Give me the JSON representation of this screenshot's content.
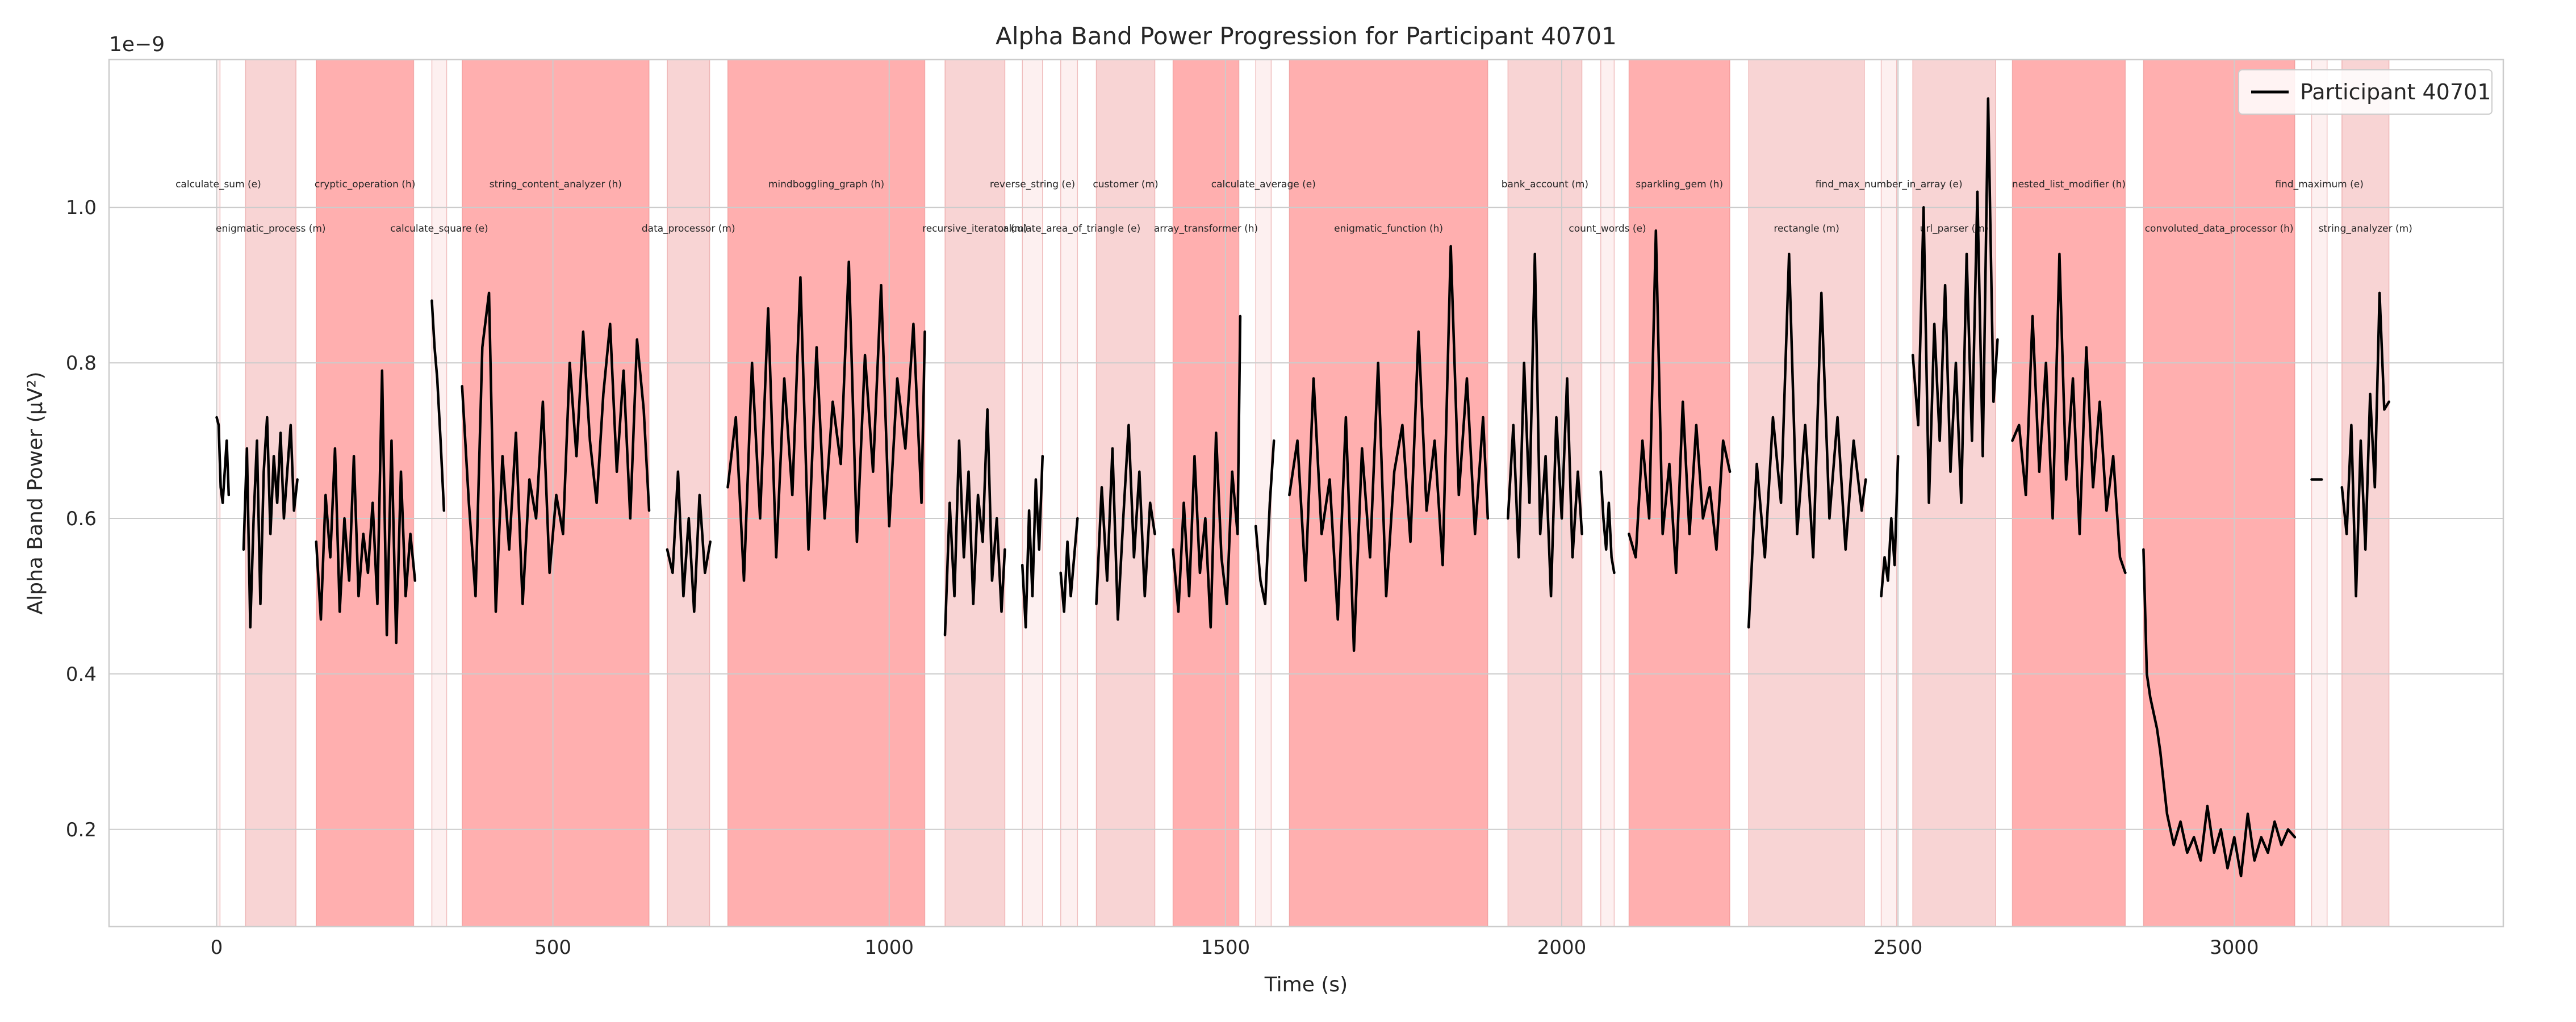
{
  "chart_data": {
    "type": "line",
    "title": "Alpha Band Power Progression for Participant 40701",
    "xlabel": "Time (s)",
    "ylabel": "Alpha Band Power (µV²)",
    "y_offset_label": "1e−9",
    "xlim": [
      -160,
      3400
    ],
    "ylim": [
      0.075,
      1.19
    ],
    "x_ticks": [
      0,
      500,
      1000,
      1500,
      2000,
      2500,
      3000
    ],
    "x_tick_labels": [
      "0",
      "500",
      "1000",
      "1500",
      "2000",
      "2500",
      "3000"
    ],
    "y_ticks": [
      0.2,
      0.4,
      0.6,
      0.8,
      1.0
    ],
    "y_tick_labels": [
      "0.2",
      "0.4",
      "0.6",
      "0.8",
      "1.0"
    ],
    "grid": true,
    "legend": {
      "placement": "top-right",
      "entries": [
        "Participant 40701"
      ]
    },
    "colors": {
      "line": "#000000",
      "hard": "#ff9999",
      "medium": "#f4b8b8",
      "easy": "#fbe3e3",
      "grid": "#cccccc"
    },
    "tasks": [
      {
        "label": "calculate_sum (e)",
        "start": 0,
        "end": 5,
        "difficulty": "e",
        "row": 0
      },
      {
        "label": "enigmatic_process (m)",
        "start": 43,
        "end": 118,
        "difficulty": "m",
        "row": 1
      },
      {
        "label": "cryptic_operation (h)",
        "start": 148,
        "end": 293,
        "difficulty": "h",
        "row": 0
      },
      {
        "label": "calculate_square (e)",
        "start": 320,
        "end": 342,
        "difficulty": "e",
        "row": 1
      },
      {
        "label": "string_content_analyzer (h)",
        "start": 365,
        "end": 643,
        "difficulty": "h",
        "row": 0
      },
      {
        "label": "data_processor (m)",
        "start": 670,
        "end": 733,
        "difficulty": "m",
        "row": 1
      },
      {
        "label": "mindboggling_graph (h)",
        "start": 760,
        "end": 1053,
        "difficulty": "h",
        "row": 0
      },
      {
        "label": "recursive_iterator (m)",
        "start": 1083,
        "end": 1172,
        "difficulty": "m",
        "row": 1
      },
      {
        "label": "reverse_string (e)",
        "start": 1198,
        "end": 1228,
        "difficulty": "e",
        "row": 0
      },
      {
        "label": "calculate_area_of_triangle (e)",
        "start": 1255,
        "end": 1280,
        "difficulty": "e",
        "row": 1
      },
      {
        "label": "customer (m)",
        "start": 1308,
        "end": 1395,
        "difficulty": "m",
        "row": 0
      },
      {
        "label": "array_transformer (h)",
        "start": 1422,
        "end": 1520,
        "difficulty": "h",
        "row": 1
      },
      {
        "label": "calculate_average (e)",
        "start": 1545,
        "end": 1568,
        "difficulty": "e",
        "row": 0
      },
      {
        "label": "enigmatic_function (h)",
        "start": 1595,
        "end": 1890,
        "difficulty": "h",
        "row": 1
      },
      {
        "label": "bank_account (m)",
        "start": 1920,
        "end": 2030,
        "difficulty": "m",
        "row": 0
      },
      {
        "label": "count_words (e)",
        "start": 2058,
        "end": 2078,
        "difficulty": "e",
        "row": 1
      },
      {
        "label": "sparkling_gem (h)",
        "start": 2100,
        "end": 2250,
        "difficulty": "h",
        "row": 0
      },
      {
        "label": "rectangle (m)",
        "start": 2278,
        "end": 2450,
        "difficulty": "m",
        "row": 1
      },
      {
        "label": "find_max_number_in_array (e)",
        "start": 2475,
        "end": 2498,
        "difficulty": "e",
        "row": 0
      },
      {
        "label": "url_parser (m)",
        "start": 2522,
        "end": 2645,
        "difficulty": "m",
        "row": 1
      },
      {
        "label": "nested_list_modifier (h)",
        "start": 2670,
        "end": 2838,
        "difficulty": "h",
        "row": 0
      },
      {
        "label": "convoluted_data_processor (h)",
        "start": 2865,
        "end": 3090,
        "difficulty": "h",
        "row": 1
      },
      {
        "label": "find_maximum (e)",
        "start": 3115,
        "end": 3138,
        "difficulty": "e",
        "row": 0
      },
      {
        "label": "string_analyzer (m)",
        "start": 3160,
        "end": 3230,
        "difficulty": "m",
        "row": 1
      }
    ],
    "series": [
      {
        "name": "Participant 40701",
        "segments": [
          {
            "x": [
              0,
              3,
              6,
              9,
              12,
              15,
              18
            ],
            "y": [
              0.73,
              0.72,
              0.64,
              0.62,
              0.66,
              0.7,
              0.63
            ]
          },
          {
            "x": [
              40,
              45,
              50,
              55,
              60,
              65,
              70,
              75,
              80,
              85,
              90,
              95,
              100,
              105,
              110,
              115,
              120
            ],
            "y": [
              0.56,
              0.69,
              0.46,
              0.6,
              0.7,
              0.49,
              0.66,
              0.73,
              0.58,
              0.68,
              0.62,
              0.71,
              0.6,
              0.66,
              0.72,
              0.61,
              0.65
            ]
          },
          {
            "x": [
              148,
              155,
              162,
              169,
              176,
              183,
              190,
              197,
              204,
              211,
              218,
              225,
              232,
              239,
              246,
              253,
              260,
              267,
              274,
              281,
              288,
              295
            ],
            "y": [
              0.57,
              0.47,
              0.63,
              0.55,
              0.69,
              0.48,
              0.6,
              0.52,
              0.68,
              0.5,
              0.58,
              0.53,
              0.62,
              0.49,
              0.79,
              0.45,
              0.7,
              0.44,
              0.66,
              0.5,
              0.58,
              0.52
            ]
          },
          {
            "x": [
              320,
              324,
              328,
              333,
              338
            ],
            "y": [
              0.88,
              0.82,
              0.78,
              0.7,
              0.61
            ]
          },
          {
            "x": [
              365,
              375,
              385,
              395,
              405,
              415,
              425,
              435,
              445,
              455,
              465,
              475,
              485,
              495,
              505,
              515,
              525,
              535,
              545,
              555,
              565,
              575,
              585,
              595,
              605,
              615,
              625,
              635,
              643
            ],
            "y": [
              0.77,
              0.62,
              0.5,
              0.82,
              0.89,
              0.48,
              0.68,
              0.56,
              0.71,
              0.49,
              0.65,
              0.6,
              0.75,
              0.53,
              0.63,
              0.58,
              0.8,
              0.68,
              0.84,
              0.7,
              0.62,
              0.76,
              0.85,
              0.66,
              0.79,
              0.6,
              0.83,
              0.74,
              0.61
            ]
          },
          {
            "x": [
              670,
              678,
              686,
              694,
              702,
              710,
              718,
              726,
              734
            ],
            "y": [
              0.56,
              0.53,
              0.66,
              0.5,
              0.6,
              0.48,
              0.63,
              0.53,
              0.57
            ]
          },
          {
            "x": [
              760,
              772,
              784,
              796,
              808,
              820,
              832,
              844,
              856,
              868,
              880,
              892,
              904,
              916,
              928,
              940,
              952,
              964,
              976,
              988,
              1000,
              1012,
              1024,
              1036,
              1048,
              1053
            ],
            "y": [
              0.64,
              0.73,
              0.52,
              0.8,
              0.6,
              0.87,
              0.55,
              0.78,
              0.63,
              0.91,
              0.56,
              0.82,
              0.6,
              0.75,
              0.67,
              0.93,
              0.57,
              0.81,
              0.66,
              0.9,
              0.59,
              0.78,
              0.69,
              0.85,
              0.62,
              0.84
            ]
          },
          {
            "x": [
              1083,
              1090,
              1097,
              1104,
              1111,
              1118,
              1125,
              1132,
              1139,
              1146,
              1153,
              1160,
              1167,
              1172
            ],
            "y": [
              0.45,
              0.62,
              0.5,
              0.7,
              0.55,
              0.66,
              0.49,
              0.63,
              0.57,
              0.74,
              0.52,
              0.6,
              0.48,
              0.56
            ]
          },
          {
            "x": [
              1198,
              1203,
              1208,
              1213,
              1218,
              1223,
              1228
            ],
            "y": [
              0.54,
              0.46,
              0.61,
              0.5,
              0.65,
              0.56,
              0.68
            ]
          },
          {
            "x": [
              1255,
              1260,
              1265,
              1270,
              1275,
              1280
            ],
            "y": [
              0.53,
              0.48,
              0.57,
              0.5,
              0.55,
              0.6
            ]
          },
          {
            "x": [
              1308,
              1316,
              1324,
              1332,
              1340,
              1348,
              1356,
              1364,
              1372,
              1380,
              1388,
              1395
            ],
            "y": [
              0.49,
              0.64,
              0.52,
              0.69,
              0.47,
              0.6,
              0.72,
              0.55,
              0.66,
              0.5,
              0.62,
              0.58
            ]
          },
          {
            "x": [
              1422,
              1430,
              1438,
              1446,
              1454,
              1462,
              1470,
              1478,
              1486,
              1494,
              1502,
              1510,
              1518,
              1522
            ],
            "y": [
              0.56,
              0.48,
              0.62,
              0.5,
              0.68,
              0.53,
              0.6,
              0.46,
              0.71,
              0.55,
              0.49,
              0.66,
              0.58,
              0.86
            ]
          },
          {
            "x": [
              1545,
              1552,
              1559,
              1566,
              1572
            ],
            "y": [
              0.59,
              0.52,
              0.49,
              0.62,
              0.7
            ]
          },
          {
            "x": [
              1595,
              1607,
              1619,
              1631,
              1643,
              1655,
              1667,
              1679,
              1691,
              1703,
              1715,
              1727,
              1739,
              1751,
              1763,
              1775,
              1787,
              1799,
              1811,
              1823,
              1835,
              1847,
              1859,
              1871,
              1883,
              1890
            ],
            "y": [
              0.63,
              0.7,
              0.52,
              0.78,
              0.58,
              0.65,
              0.47,
              0.73,
              0.43,
              0.69,
              0.55,
              0.8,
              0.5,
              0.66,
              0.72,
              0.57,
              0.84,
              0.61,
              0.7,
              0.54,
              0.95,
              0.63,
              0.78,
              0.58,
              0.73,
              0.6
            ]
          },
          {
            "x": [
              1920,
              1928,
              1936,
              1944,
              1952,
              1960,
              1968,
              1976,
              1984,
              1992,
              2000,
              2008,
              2016,
              2024,
              2030
            ],
            "y": [
              0.6,
              0.72,
              0.55,
              0.8,
              0.62,
              0.94,
              0.58,
              0.68,
              0.5,
              0.73,
              0.6,
              0.78,
              0.55,
              0.66,
              0.58
            ]
          },
          {
            "x": [
              2058,
              2062,
              2066,
              2070,
              2074,
              2078
            ],
            "y": [
              0.66,
              0.6,
              0.56,
              0.62,
              0.55,
              0.53
            ]
          },
          {
            "x": [
              2100,
              2110,
              2120,
              2130,
              2140,
              2150,
              2160,
              2170,
              2180,
              2190,
              2200,
              2210,
              2220,
              2230,
              2240,
              2250
            ],
            "y": [
              0.58,
              0.55,
              0.7,
              0.6,
              0.97,
              0.58,
              0.67,
              0.53,
              0.75,
              0.58,
              0.72,
              0.6,
              0.64,
              0.56,
              0.7,
              0.66
            ]
          },
          {
            "x": [
              2278,
              2290,
              2302,
              2314,
              2326,
              2338,
              2350,
              2362,
              2374,
              2386,
              2398,
              2410,
              2422,
              2434,
              2446,
              2452
            ],
            "y": [
              0.46,
              0.67,
              0.55,
              0.73,
              0.62,
              0.94,
              0.58,
              0.72,
              0.55,
              0.89,
              0.6,
              0.73,
              0.56,
              0.7,
              0.61,
              0.65
            ]
          },
          {
            "x": [
              2475,
              2480,
              2485,
              2490,
              2495,
              2500
            ],
            "y": [
              0.5,
              0.55,
              0.52,
              0.6,
              0.54,
              0.68
            ]
          },
          {
            "x": [
              2522,
              2530,
              2538,
              2546,
              2554,
              2562,
              2570,
              2578,
              2586,
              2594,
              2602,
              2610,
              2618,
              2626,
              2634,
              2642,
              2648
            ],
            "y": [
              0.81,
              0.72,
              1.0,
              0.62,
              0.85,
              0.7,
              0.9,
              0.66,
              0.8,
              0.62,
              0.94,
              0.7,
              1.02,
              0.68,
              1.14,
              0.75,
              0.83
            ]
          },
          {
            "x": [
              2670,
              2680,
              2690,
              2700,
              2710,
              2720,
              2730,
              2740,
              2750,
              2760,
              2770,
              2780,
              2790,
              2800,
              2810,
              2820,
              2830,
              2838
            ],
            "y": [
              0.7,
              0.72,
              0.63,
              0.86,
              0.66,
              0.8,
              0.6,
              0.94,
              0.65,
              0.78,
              0.58,
              0.82,
              0.64,
              0.75,
              0.61,
              0.68,
              0.55,
              0.53
            ]
          },
          {
            "x": [
              2865,
              2870,
              2875,
              2880,
              2885,
              2890,
              2895,
              2900,
              2905,
              2910,
              2920,
              2930,
              2940,
              2950,
              2960,
              2970,
              2980,
              2990,
              3000,
              3010,
              3020,
              3030,
              3040,
              3050,
              3060,
              3070,
              3080,
              3090
            ],
            "y": [
              0.56,
              0.4,
              0.37,
              0.35,
              0.33,
              0.3,
              0.26,
              0.22,
              0.2,
              0.18,
              0.21,
              0.17,
              0.19,
              0.16,
              0.23,
              0.17,
              0.2,
              0.15,
              0.19,
              0.14,
              0.22,
              0.16,
              0.19,
              0.17,
              0.21,
              0.18,
              0.2,
              0.19
            ]
          },
          {
            "x": [
              3115,
              3122,
              3130
            ],
            "y": [
              0.65,
              0.65,
              0.65
            ]
          },
          {
            "x": [
              3160,
              3167,
              3174,
              3181,
              3188,
              3195,
              3202,
              3209,
              3216,
              3223,
              3230
            ],
            "y": [
              0.64,
              0.58,
              0.72,
              0.5,
              0.7,
              0.56,
              0.76,
              0.64,
              0.89,
              0.74,
              0.75
            ]
          }
        ]
      }
    ]
  }
}
